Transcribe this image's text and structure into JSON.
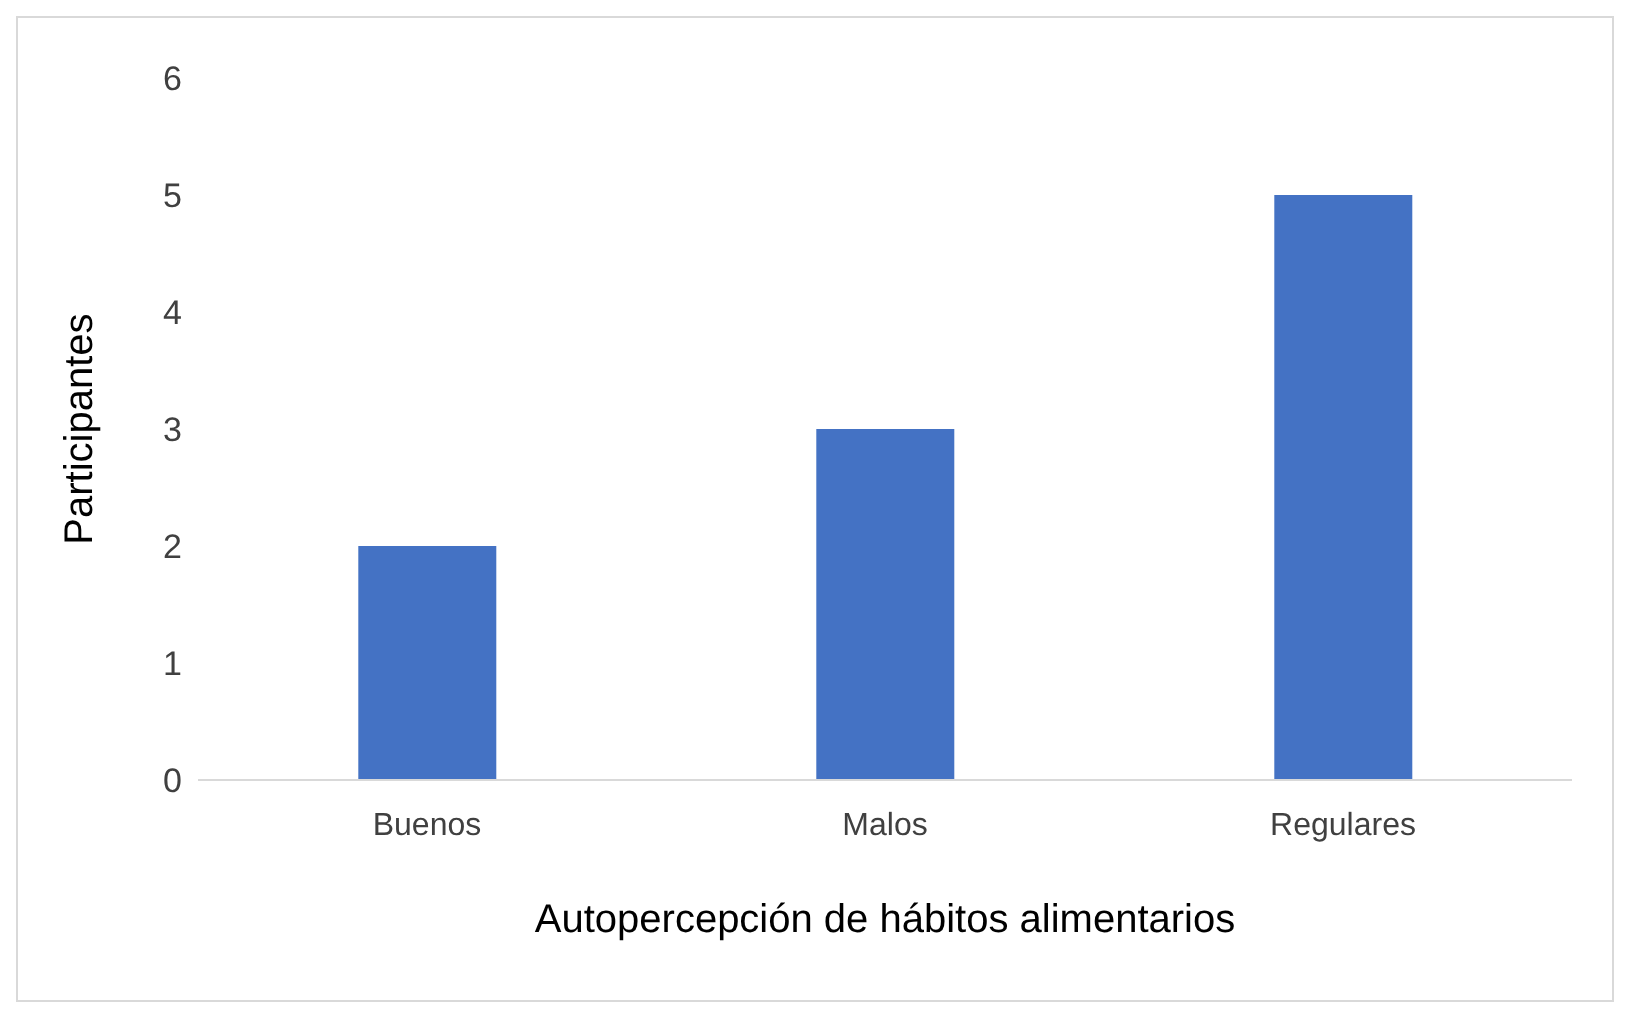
{
  "chart_data": {
    "type": "bar",
    "xlabel": "Autopercepción de hábitos alimentarios",
    "ylabel": "Participantes",
    "categories": [
      "Buenos",
      "Malos",
      "Regulares"
    ],
    "values": [
      2,
      3,
      5
    ],
    "color": "#4472c4",
    "ylim": [
      0,
      6
    ],
    "yticks": [
      0,
      1,
      2,
      3,
      4,
      5,
      6
    ],
    "grid": false,
    "legend": false
  }
}
